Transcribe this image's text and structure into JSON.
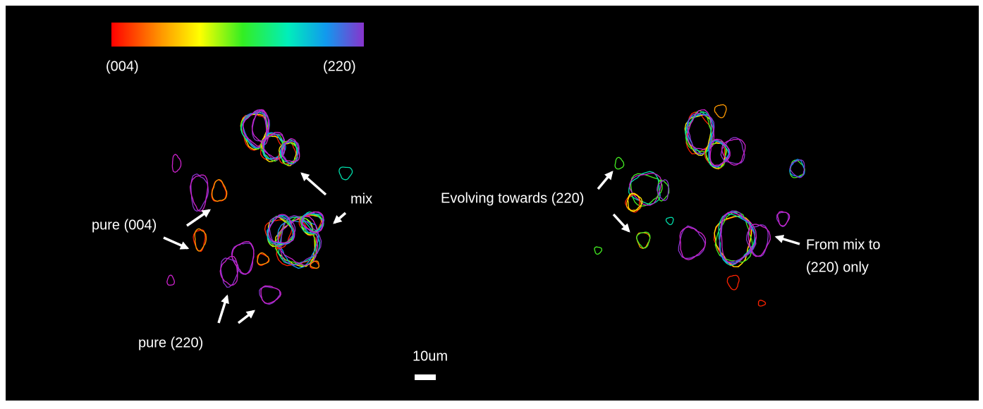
{
  "colorbar": {
    "left_label": "(004)",
    "right_label": "(220)"
  },
  "left_panel": {
    "annotations": [
      "pure (004)",
      "pure (220)",
      "mix"
    ]
  },
  "right_panel": {
    "annotations": [
      "Evolving towards (220)",
      [
        "From mix to",
        "(220) only"
      ]
    ]
  },
  "scale_bar": {
    "label": "10um"
  }
}
